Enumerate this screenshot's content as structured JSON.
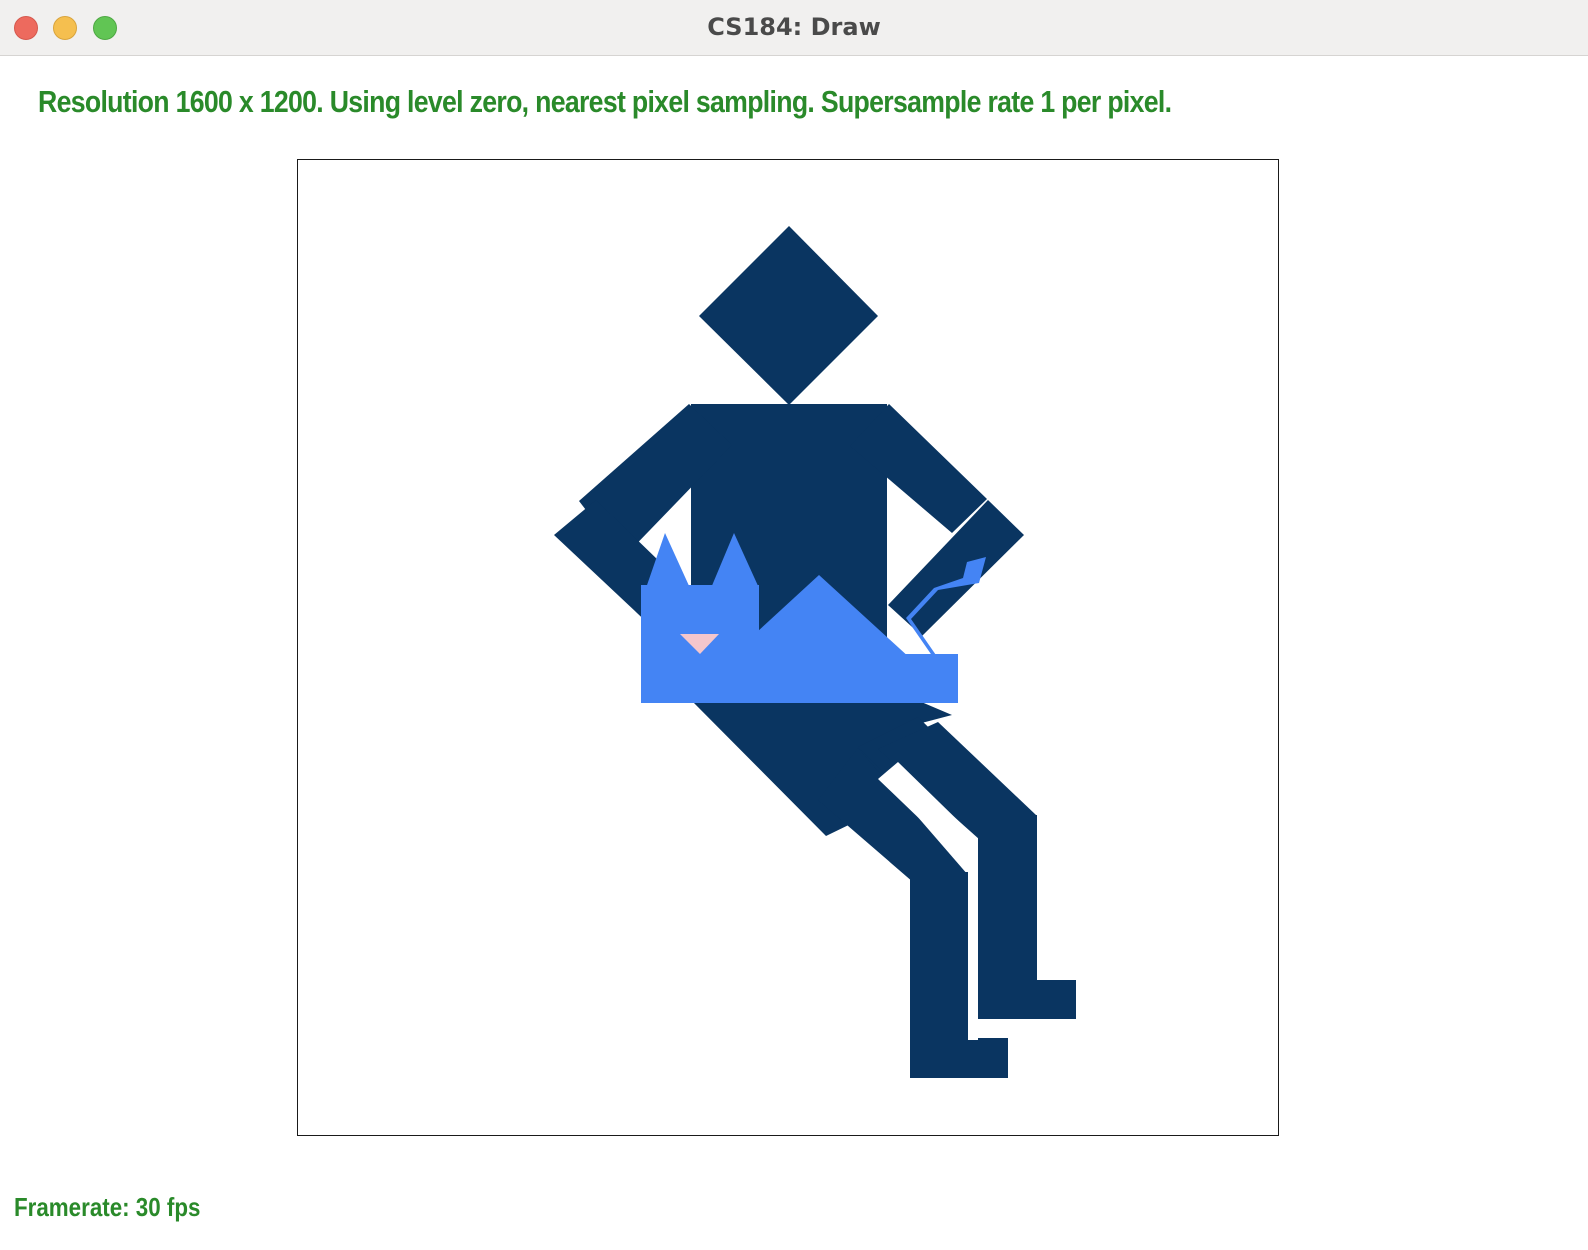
{
  "window": {
    "title": "CS184: Draw"
  },
  "status": {
    "message": "Resolution 1600 x 1200. Using level zero, nearest pixel sampling. Supersample rate 1 per pixel.",
    "framerate": "Framerate: 30 fps"
  },
  "colors": {
    "figure": "#0a3561",
    "cat": "#4484f4",
    "cat_nose": "#f4c6cc",
    "status_text": "#2a8a2a",
    "canvas_border": "#1a1a1a"
  },
  "icons": {
    "close": "close-icon",
    "minimize": "minimize-icon",
    "maximize": "maximize-icon"
  }
}
